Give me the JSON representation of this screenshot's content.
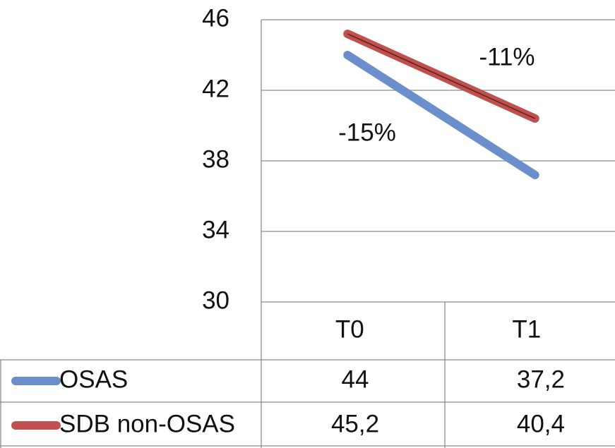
{
  "chart_data": {
    "type": "line",
    "categories": [
      "T0",
      "T1"
    ],
    "series": [
      {
        "name": "OSAS",
        "color": "#6a8fca",
        "values": [
          44,
          37.2
        ],
        "value_labels": [
          "44",
          "37,2"
        ]
      },
      {
        "name": "SDB non-OSAS",
        "color": "#c0504d",
        "values": [
          45.2,
          40.4
        ],
        "value_labels": [
          "45,2",
          "40,4"
        ]
      }
    ],
    "annotations": [
      "-11%",
      "-15%"
    ],
    "ylim": [
      30,
      46
    ],
    "yticks": [
      30,
      34,
      38,
      42,
      46
    ],
    "grid": true
  }
}
